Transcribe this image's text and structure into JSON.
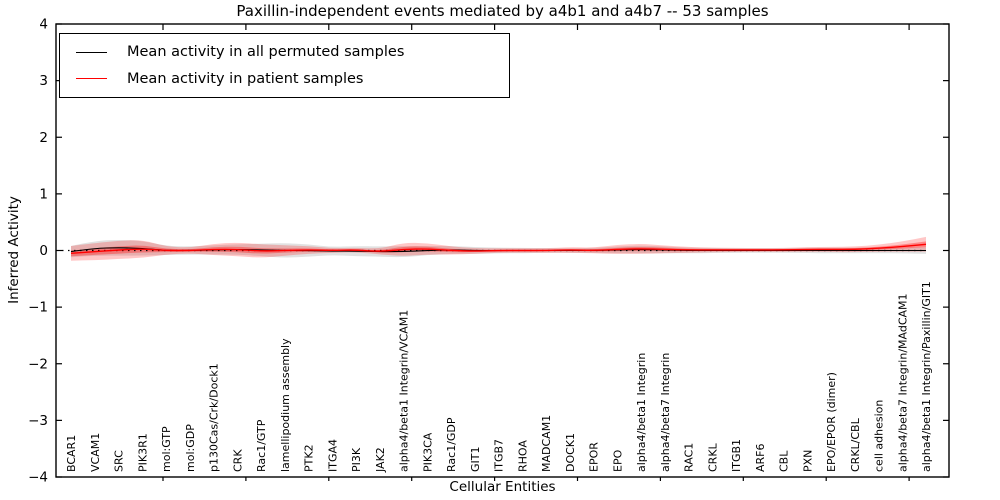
{
  "title": "Paxillin-independent events mediated by a4b1 and a4b7 -- 53 samples",
  "axes": {
    "y_label": "Inferred Activity",
    "x_label": "Cellular Entities",
    "y_tick_labels": [
      "4",
      "3",
      "2",
      "1",
      "0",
      "−1",
      "−2",
      "−3",
      "−4"
    ]
  },
  "legend": {
    "items": [
      {
        "label": "Mean activity in all permuted samples",
        "color": "#000000"
      },
      {
        "label": "Mean activity in patient samples",
        "color": "#ff0000"
      }
    ],
    "position": "upper left"
  },
  "chart_data": {
    "type": "line",
    "title": "Paxillin-independent events mediated by a4b1 and a4b7 -- 53 samples",
    "xlabel": "Cellular Entities",
    "ylabel": "Inferred Activity",
    "ylim": [
      -4,
      4
    ],
    "yticks": [
      4,
      3,
      2,
      1,
      0,
      -1,
      -2,
      -3,
      -4
    ],
    "grid": false,
    "legend_position": "upper left",
    "zero_line": {
      "style": "dotted",
      "color": "#000000"
    },
    "categories": [
      "BCAR1",
      "VCAM1",
      "SRC",
      "PIK3R1",
      "mol:GTP",
      "mol:GDP",
      "p130Cas/Crk/Dock1",
      "CRK",
      "Rac1/GTP",
      "lamellipodium assembly",
      "PTK2",
      "ITGA4",
      "PI3K",
      "JAK2",
      "alpha4/beta1 Integrin/VCAM1",
      "PIK3CA",
      "Rac1/GDP",
      "GIT1",
      "ITGB7",
      "RHOA",
      "MADCAM1",
      "DOCK1",
      "EPOR",
      "EPO",
      "alpha4/beta1 Integrin",
      "alpha4/beta7 Integrin",
      "RAC1",
      "CRKL",
      "ITGB1",
      "ARF6",
      "CBL",
      "PXN",
      "EPO/EPOR (dimer)",
      "CRKL/CBL",
      "cell adhesion",
      "alpha4/beta7 Integrin/MAdCAM1",
      "alpha4/beta1 Integrin/Paxillin/GIT1"
    ],
    "series": [
      {
        "name": "Mean activity in all permuted samples",
        "color": "#000000",
        "values": [
          -0.02,
          0.04,
          0.05,
          0.04,
          0,
          0,
          0.01,
          0.02,
          0.01,
          0,
          0,
          -0.01,
          -0.01,
          -0.02,
          -0.02,
          0,
          0.01,
          0,
          0,
          0,
          0,
          0,
          0,
          0.01,
          0.02,
          0.01,
          0,
          0,
          0,
          0,
          0,
          0,
          0,
          0,
          0,
          0,
          0
        ]
      },
      {
        "name": "Mean activity in patient samples",
        "color": "#ff0000",
        "values": [
          -0.05,
          -0.02,
          0.01,
          0.03,
          0,
          0,
          0.02,
          0.02,
          -0.01,
          0,
          0.01,
          0,
          0.01,
          -0.02,
          0.02,
          0.03,
          0,
          -0.01,
          0,
          0,
          0,
          0.01,
          0,
          0.02,
          0.03,
          0.02,
          0.01,
          0.01,
          0.01,
          0.01,
          0.01,
          0.02,
          0.02,
          0.02,
          0.04,
          0.07,
          0.11
        ]
      }
    ],
    "bands": [
      {
        "name": "permuted-std-band",
        "center": "permuted",
        "color": "#888888",
        "opacity": 0.25,
        "half_widths": [
          0.1,
          0.13,
          0.14,
          0.13,
          0.08,
          0.07,
          0.08,
          0.09,
          0.11,
          0.13,
          0.11,
          0.07,
          0.09,
          0.09,
          0.1,
          0.08,
          0.07,
          0.06,
          0.05,
          0.05,
          0.04,
          0.04,
          0.045,
          0.06,
          0.07,
          0.06,
          0.05,
          0.045,
          0.04,
          0.04,
          0.04,
          0.045,
          0.05,
          0.05,
          0.05,
          0.05,
          0.06
        ]
      },
      {
        "name": "patient-std-band-outer",
        "center": "patient",
        "color": "#ff0000",
        "opacity": 0.22,
        "half_widths": [
          0.13,
          0.15,
          0.16,
          0.16,
          0.07,
          0.05,
          0.1,
          0.12,
          0.12,
          0.09,
          0.07,
          0.04,
          0.04,
          0.05,
          0.12,
          0.1,
          0.07,
          0.05,
          0.04,
          0.04,
          0.04,
          0.05,
          0.05,
          0.08,
          0.09,
          0.07,
          0.05,
          0.04,
          0.035,
          0.035,
          0.035,
          0.04,
          0.045,
          0.05,
          0.06,
          0.09,
          0.13
        ]
      },
      {
        "name": "patient-std-band-inner",
        "center": "patient",
        "color": "#ff0000",
        "opacity": 0.33,
        "half_widths": [
          0.05,
          0.06,
          0.065,
          0.065,
          0.03,
          0.02,
          0.04,
          0.05,
          0.05,
          0.035,
          0.03,
          0.018,
          0.018,
          0.02,
          0.05,
          0.04,
          0.03,
          0.02,
          0.016,
          0.016,
          0.016,
          0.02,
          0.02,
          0.03,
          0.035,
          0.03,
          0.02,
          0.016,
          0.014,
          0.014,
          0.014,
          0.016,
          0.018,
          0.02,
          0.025,
          0.035,
          0.05
        ]
      }
    ]
  }
}
